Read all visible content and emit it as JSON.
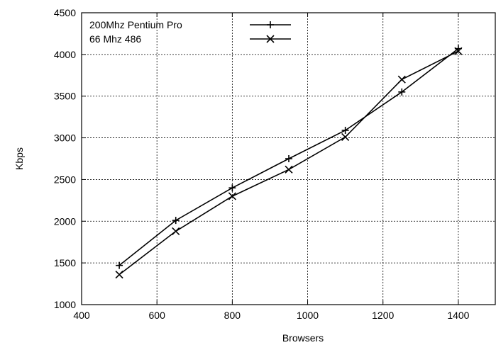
{
  "chart_data": {
    "type": "line",
    "xlabel": "Browsers",
    "ylabel": "Kbps",
    "xlim": [
      400,
      1500
    ],
    "ylim": [
      1000,
      4500
    ],
    "xticks": [
      400,
      600,
      800,
      1000,
      1200,
      1400
    ],
    "yticks": [
      1000,
      1500,
      2000,
      2500,
      3000,
      3500,
      4000,
      4500
    ],
    "grid": true,
    "legend_position": "top-left",
    "series": [
      {
        "name": "200Mhz Pentium Pro",
        "marker": "plus",
        "x": [
          500,
          650,
          800,
          950,
          1100,
          1250,
          1400
        ],
        "y": [
          1470,
          2010,
          2400,
          2750,
          3090,
          3550,
          4070
        ]
      },
      {
        "name": "66 Mhz 486",
        "marker": "cross",
        "x": [
          500,
          650,
          800,
          950,
          1100,
          1250,
          1400
        ],
        "y": [
          1360,
          1880,
          2300,
          2620,
          3010,
          3700,
          4040
        ]
      }
    ]
  }
}
